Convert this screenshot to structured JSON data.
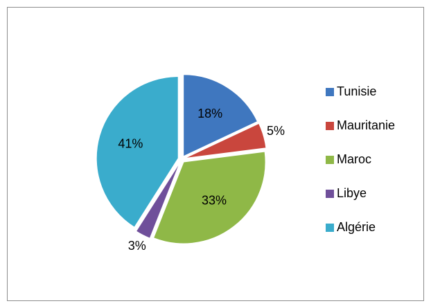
{
  "chart_data": {
    "type": "pie",
    "categories": [
      "Tunisie",
      "Mauritanie",
      "Maroc",
      "Libye",
      "Algérie"
    ],
    "values": [
      18,
      5,
      33,
      3,
      41
    ],
    "value_labels": [
      "18%",
      "5%",
      "33%",
      "3%",
      "41%"
    ],
    "colors": [
      "#3f77bf",
      "#c9463d",
      "#8fb847",
      "#6f4f9a",
      "#3aaccc"
    ],
    "legend": "right"
  }
}
